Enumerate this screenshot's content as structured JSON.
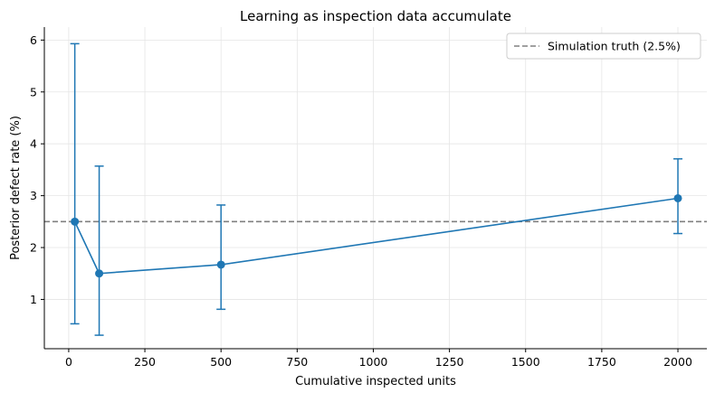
{
  "chart_data": {
    "type": "line",
    "title": "Learning as inspection data accumulate",
    "xlabel": "Cumulative inspected units",
    "ylabel": "Posterior defect rate (%)",
    "xlim": [
      -80,
      2095
    ],
    "ylim": [
      0.05,
      6.25
    ],
    "xticks": [
      0,
      250,
      500,
      750,
      1000,
      1250,
      1500,
      1750,
      2000
    ],
    "yticks": [
      1,
      2,
      3,
      4,
      5,
      6
    ],
    "grid": true,
    "legend_position": "top-right",
    "series": [
      {
        "color": "#1f77b4",
        "x": [
          20,
          100,
          500,
          2000
        ],
        "y": [
          2.5,
          1.5,
          1.67,
          2.95
        ],
        "err_low": [
          0.53,
          0.31,
          0.81,
          2.27
        ],
        "err_high": [
          5.93,
          3.57,
          2.82,
          3.71
        ]
      }
    ],
    "reference_line": {
      "name": "Simulation truth (2.5%)",
      "y": 2.5,
      "color": "#808080",
      "style": "dashed"
    }
  }
}
